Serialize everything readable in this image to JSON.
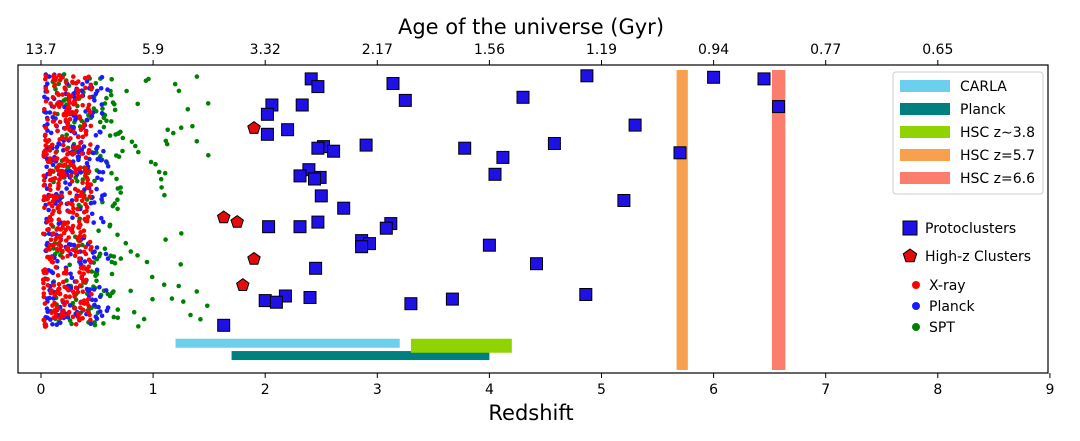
{
  "chart_data": {
    "type": "scatter",
    "xlabel": "Redshift",
    "x2label": "Age of the universe (Gyr)",
    "xlim": [
      0,
      9
    ],
    "xticks": [
      0,
      1,
      2,
      3,
      4,
      5,
      6,
      7,
      8,
      9
    ],
    "xtick_labels": [
      "0",
      "1",
      "2",
      "3",
      "4",
      "5",
      "6",
      "7",
      "8",
      "9"
    ],
    "top_axis": {
      "redshifts": [
        0,
        1,
        2,
        3,
        4,
        5,
        6,
        7,
        8
      ],
      "labels": [
        "13.7",
        "5.9",
        "3.32",
        "2.17",
        "1.56",
        "1.19",
        "0.94",
        "0.77",
        "0.65"
      ]
    },
    "y_axis": "none (random vertical scatter, 0–1 arbitrary)",
    "colors": {
      "xray": "#ff0000",
      "planck_pt": "#1a1aff",
      "spt": "#008000",
      "protocluster": "#1f10e6",
      "highz": "#e30b0b",
      "carla": "#6ccfee",
      "planck_bar": "#007f7f",
      "hsc38": "#8fd400",
      "hsc57": "#f9a04e",
      "hsc66": "#fa7d6e"
    },
    "survey_ranges": [
      {
        "name": "CARLA",
        "label": "CARLA",
        "z_min": 1.2,
        "z_max": 3.2,
        "level": 0.095
      },
      {
        "name": "Planck",
        "label": "Planck",
        "z_min": 1.7,
        "z_max": 4.0,
        "level": 0.055
      },
      {
        "name": "HSC z~3.8",
        "label": "HSC z∼3.8",
        "z_min": 3.3,
        "z_max": 4.2,
        "level": 0.095
      }
    ],
    "redshift_bands": [
      {
        "name": "HSC z=5.7",
        "label": "HSC z=5.7",
        "z_min": 5.67,
        "z_max": 5.77
      },
      {
        "name": "HSC z=6.6",
        "label": "HSC z=6.6",
        "z_min": 6.52,
        "z_max": 6.64
      }
    ],
    "protoclusters": [
      [
        2.41,
        0.955
      ],
      [
        3.14,
        0.94
      ],
      [
        4.87,
        0.965
      ],
      [
        6.0,
        0.96
      ],
      [
        6.45,
        0.955
      ],
      [
        2.47,
        0.93
      ],
      [
        3.25,
        0.885
      ],
      [
        4.3,
        0.895
      ],
      [
        2.33,
        0.87
      ],
      [
        2.06,
        0.87
      ],
      [
        6.58,
        0.865
      ],
      [
        2.02,
        0.84
      ],
      [
        5.3,
        0.805
      ],
      [
        2.2,
        0.79
      ],
      [
        2.02,
        0.775
      ],
      [
        2.9,
        0.74
      ],
      [
        4.58,
        0.745
      ],
      [
        2.52,
        0.735
      ],
      [
        2.47,
        0.73
      ],
      [
        2.61,
        0.72
      ],
      [
        3.78,
        0.73
      ],
      [
        5.7,
        0.715
      ],
      [
        4.12,
        0.7
      ],
      [
        2.39,
        0.66
      ],
      [
        2.31,
        0.64
      ],
      [
        2.49,
        0.635
      ],
      [
        2.44,
        0.63
      ],
      [
        4.05,
        0.645
      ],
      [
        2.5,
        0.575
      ],
      [
        5.2,
        0.56
      ],
      [
        2.7,
        0.535
      ],
      [
        2.47,
        0.49
      ],
      [
        3.12,
        0.485
      ],
      [
        2.31,
        0.475
      ],
      [
        2.03,
        0.475
      ],
      [
        3.08,
        0.47
      ],
      [
        2.86,
        0.43
      ],
      [
        2.93,
        0.42
      ],
      [
        2.86,
        0.41
      ],
      [
        4.0,
        0.415
      ],
      [
        4.42,
        0.355
      ],
      [
        2.45,
        0.34
      ],
      [
        4.86,
        0.255
      ],
      [
        2.18,
        0.25
      ],
      [
        2.4,
        0.245
      ],
      [
        3.67,
        0.24
      ],
      [
        2.0,
        0.235
      ],
      [
        2.1,
        0.23
      ],
      [
        3.3,
        0.225
      ],
      [
        1.63,
        0.155
      ]
    ],
    "high_z_clusters": [
      [
        1.9,
        0.795
      ],
      [
        1.63,
        0.505
      ],
      [
        1.75,
        0.49
      ],
      [
        1.9,
        0.37
      ],
      [
        1.8,
        0.285
      ]
    ],
    "point_clouds": [
      {
        "name": "X-ray",
        "z_min": 0.02,
        "z_max": 0.45,
        "count": 420,
        "seed": 11
      },
      {
        "name": "Planck",
        "z_min": 0.03,
        "z_max": 0.6,
        "count": 300,
        "seed": 23
      },
      {
        "name": "SPT",
        "z_min": 0.1,
        "z_max": 1.5,
        "count": 240,
        "seed": 37
      }
    ],
    "legend": [
      {
        "name": "CARLA",
        "label": "CARLA",
        "kind": "bar",
        "color": "#6ccfee"
      },
      {
        "name": "Planck",
        "label": "Planck",
        "kind": "bar",
        "color": "#007f7f"
      },
      {
        "name": "HSC z~3.8",
        "label": "HSC z∼3.8",
        "kind": "bar",
        "color": "#8fd400"
      },
      {
        "name": "HSC z=5.7",
        "label": "HSC z=5.7",
        "kind": "bar",
        "color": "#f9a04e"
      },
      {
        "name": "HSC z=6.6",
        "label": "HSC z=6.6",
        "kind": "bar",
        "color": "#fa7d6e"
      },
      {
        "name": "Protoclusters",
        "label": "Protoclusters",
        "kind": "square",
        "color": "#1f10e6"
      },
      {
        "name": "High-z Clusters",
        "label": "High-z Clusters",
        "kind": "pentagon",
        "color": "#e30b0b"
      },
      {
        "name": "X-ray",
        "label": "X-ray",
        "kind": "dot",
        "color": "#ff0000"
      },
      {
        "name": "Planck",
        "label": "Planck",
        "kind": "dot",
        "color": "#1a1aff"
      },
      {
        "name": "SPT",
        "label": "SPT",
        "kind": "dot",
        "color": "#008000"
      }
    ],
    "legend_position": "right"
  }
}
